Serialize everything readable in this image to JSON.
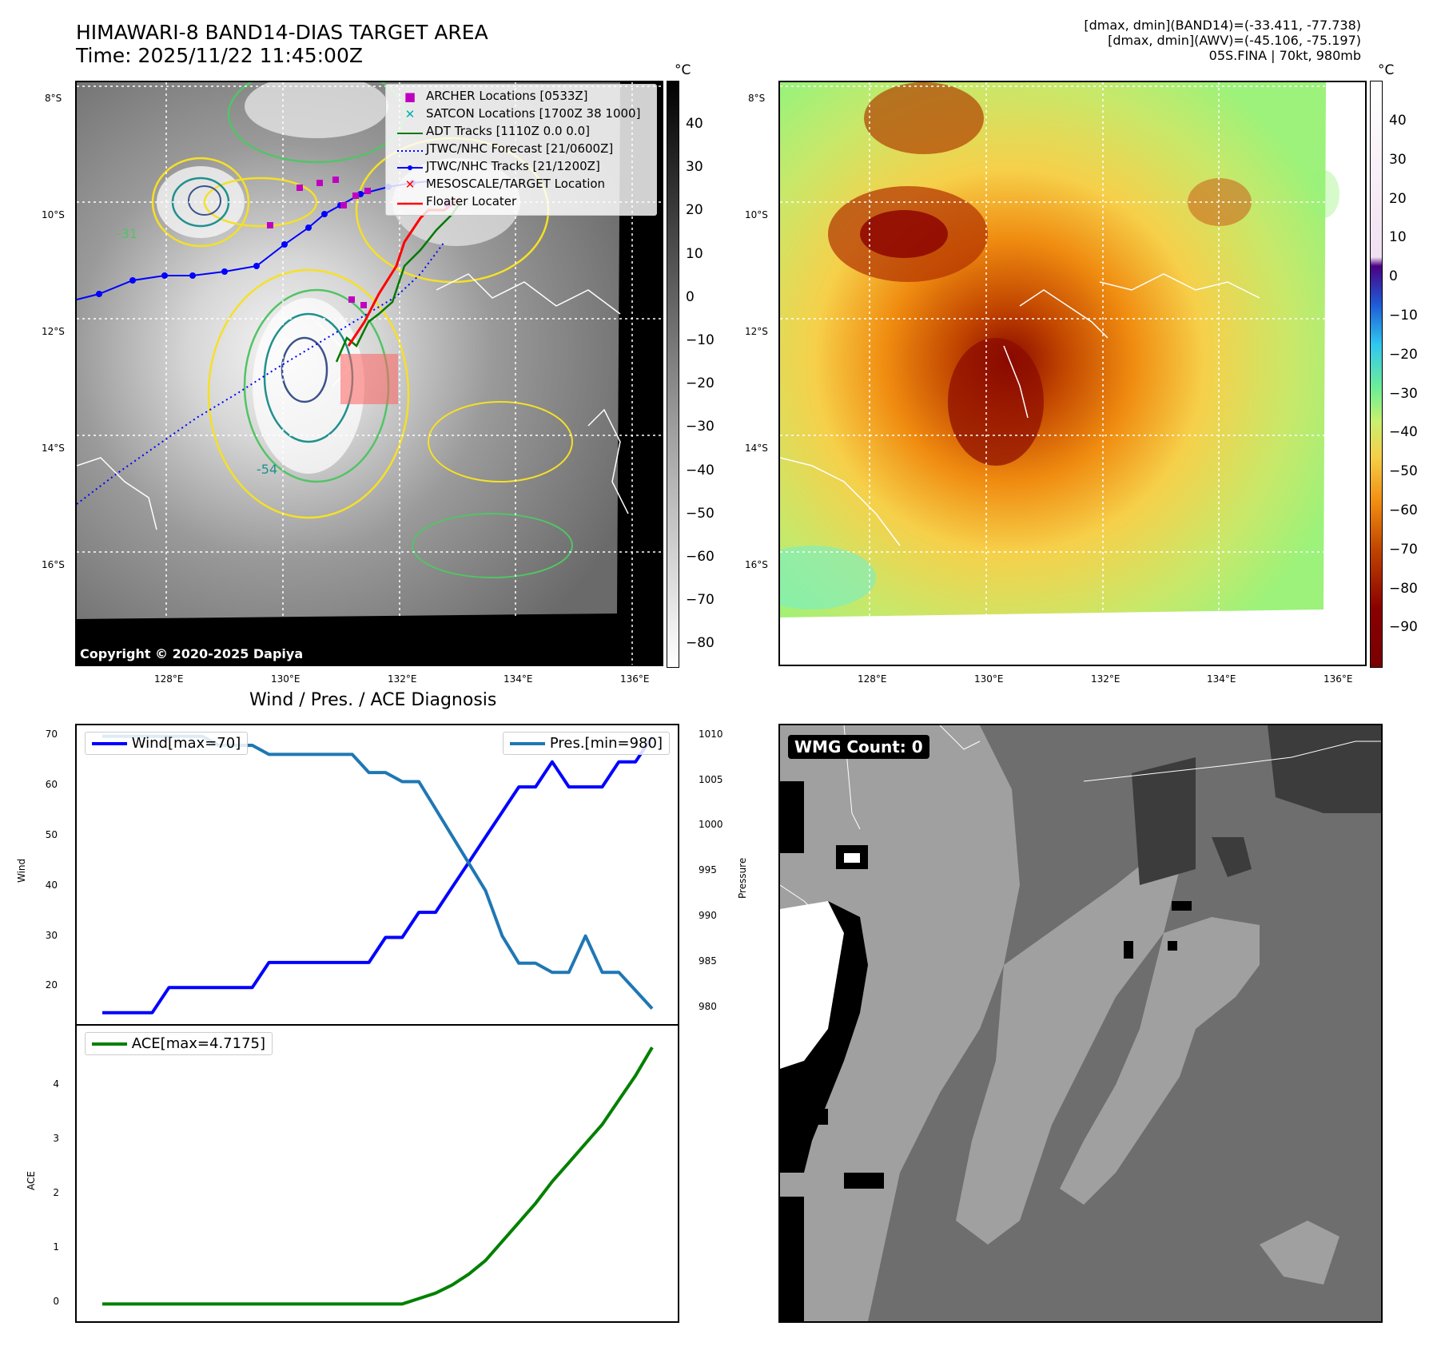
{
  "header": {
    "title_line1": "HIMAWARI-8 BAND14-DIAS TARGET AREA",
    "title_line2": "Time: 2025/11/22 11:45:00Z",
    "info_line1": "[dmax, dmin](BAND14)=(-33.411, -77.738)",
    "info_line2": "[dmax, dmin](AWV)=(-45.106, -75.197)",
    "info_line3": "05S.FINA | 70kt, 980mb"
  },
  "map": {
    "lat_labels": [
      "8°S",
      "10°S",
      "12°S",
      "14°S",
      "16°S"
    ],
    "lon_labels": [
      "128°E",
      "130°E",
      "132°E",
      "134°E",
      "136°E"
    ],
    "copyright": "Copyright © 2020-2025 Dapiya",
    "contour_labels": [
      "-31",
      "-54"
    ],
    "legend": [
      {
        "label": "ARCHER Locations [0533Z]",
        "color": "#c000c0",
        "symbol": "square"
      },
      {
        "label": "SATCON Locations [1700Z 38 1000]",
        "color": "#00b0b0",
        "symbol": "x"
      },
      {
        "label": "ADT Tracks [1110Z 0.0 0.0]",
        "color": "#007a00",
        "symbol": "line"
      },
      {
        "label": "JTWC/NHC Forecast [21/0600Z]",
        "color": "#0000ff",
        "symbol": "dotted"
      },
      {
        "label": "JTWC/NHC Tracks [21/1200Z]",
        "color": "#0000ff",
        "symbol": "dotline"
      },
      {
        "label": "MESOSCALE/TARGET Location",
        "color": "#ff0000",
        "symbol": "x"
      },
      {
        "label": "Floater Locater",
        "color": "#ff0000",
        "symbol": "line"
      }
    ]
  },
  "colorbar_band14": {
    "unit": "°C",
    "ticks": [
      "40",
      "30",
      "20",
      "10",
      "0",
      "−10",
      "−20",
      "−30",
      "−40",
      "−50",
      "−60",
      "−70",
      "−80"
    ]
  },
  "colorbar_awv": {
    "unit": "°C",
    "ticks": [
      "40",
      "30",
      "20",
      "10",
      "0",
      "−10",
      "−20",
      "−30",
      "−40",
      "−50",
      "−60",
      "−70",
      "−80",
      "−90"
    ]
  },
  "wmg": {
    "label": "WMG Count: 0"
  },
  "chart_data": [
    {
      "type": "line",
      "title": "Wind / Pres. / ACE Diagnosis",
      "ylabel": "Wind",
      "ylim": [
        14,
        71
      ],
      "yticks": [
        20,
        30,
        40,
        50,
        60,
        70
      ],
      "series": [
        {
          "name": "Wind[max=70]",
          "color": "#0000ff",
          "values": [
            15,
            15,
            15,
            15,
            20,
            20,
            20,
            20,
            20,
            20,
            25,
            25,
            25,
            25,
            25,
            25,
            25,
            30,
            30,
            35,
            35,
            40,
            45,
            50,
            55,
            60,
            60,
            65,
            60,
            60,
            60,
            65,
            65,
            70
          ]
        }
      ]
    },
    {
      "type": "line",
      "ylabel": "Pressure",
      "ylim": [
        979,
        1010.5
      ],
      "yticks": [
        980,
        985,
        990,
        995,
        1000,
        1005,
        1010
      ],
      "y2_tick_labels": [
        "980",
        "985",
        "990",
        "995",
        "1000",
        "1005",
        "1010"
      ],
      "series": [
        {
          "name": "Pres.[min=980]",
          "color": "#1f77b4",
          "values": [
            1010,
            1010,
            1010,
            1010,
            1010,
            1010,
            1010,
            1009,
            1009,
            1009,
            1008,
            1008,
            1008,
            1008,
            1008,
            1008,
            1006,
            1006,
            1005,
            1005,
            1002,
            999,
            996,
            993,
            988,
            985,
            985,
            984,
            984,
            988,
            984,
            984,
            982,
            980
          ]
        }
      ]
    },
    {
      "type": "line",
      "ylabel": "ACE",
      "ylim": [
        -0.2,
        5.0
      ],
      "yticks": [
        0,
        1,
        2,
        3,
        4
      ],
      "series": [
        {
          "name": "ACE[max=4.7175]",
          "color": "#008000",
          "values": [
            0,
            0,
            0,
            0,
            0,
            0,
            0,
            0,
            0,
            0,
            0,
            0,
            0,
            0,
            0,
            0,
            0,
            0,
            0,
            0.1,
            0.2,
            0.35,
            0.55,
            0.8,
            1.15,
            1.5,
            1.85,
            2.25,
            2.6,
            2.95,
            3.3,
            3.75,
            4.2,
            4.7175
          ]
        }
      ]
    }
  ]
}
